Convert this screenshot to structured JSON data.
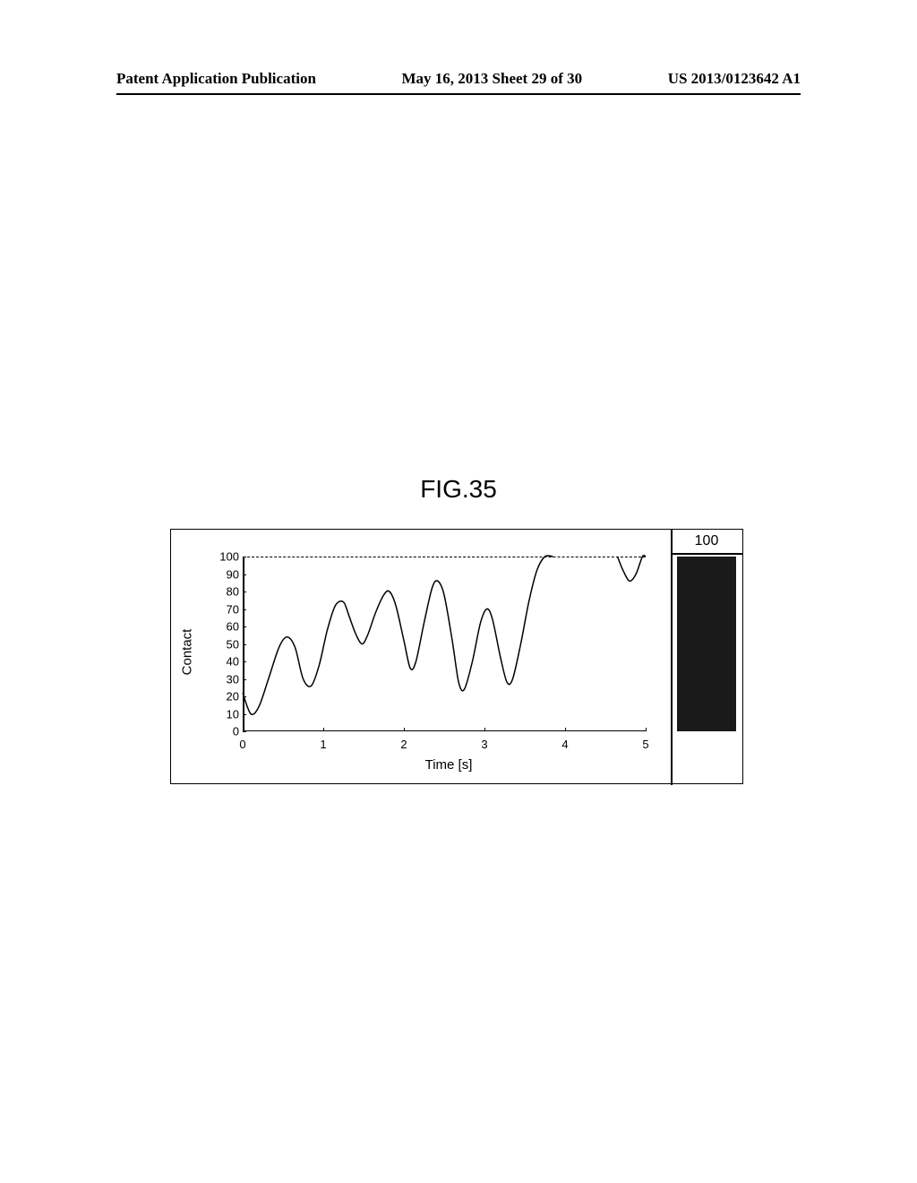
{
  "header": {
    "left": "Patent Application Publication",
    "center": "May 16, 2013  Sheet 29 of 30",
    "right": "US 2013/0123642 A1"
  },
  "figure": {
    "label": "FIG.35"
  },
  "chart": {
    "type": "line",
    "xlabel": "Time [s]",
    "ylabel": "Contact",
    "xlim": [
      0,
      5
    ],
    "ylim": [
      0,
      100
    ],
    "xtick_step": 1,
    "ytick_step": 10,
    "xticks": [
      0,
      1,
      2,
      3,
      4,
      5
    ],
    "yticks": [
      0,
      10,
      20,
      30,
      40,
      50,
      60,
      70,
      80,
      90,
      100
    ],
    "line_color": "#000000",
    "line_width": 1.5,
    "background_color": "#ffffff",
    "axis_color": "#000000",
    "top_line_dashed": true,
    "label_fontsize": 15,
    "tick_fontsize": 13,
    "data_points": [
      [
        0.0,
        22
      ],
      [
        0.1,
        10
      ],
      [
        0.2,
        14
      ],
      [
        0.32,
        30
      ],
      [
        0.45,
        48
      ],
      [
        0.55,
        54
      ],
      [
        0.65,
        48
      ],
      [
        0.75,
        30
      ],
      [
        0.85,
        26
      ],
      [
        0.95,
        38
      ],
      [
        1.05,
        58
      ],
      [
        1.15,
        72
      ],
      [
        1.25,
        74
      ],
      [
        1.32,
        66
      ],
      [
        1.4,
        56
      ],
      [
        1.48,
        50
      ],
      [
        1.55,
        55
      ],
      [
        1.65,
        68
      ],
      [
        1.75,
        78
      ],
      [
        1.82,
        80
      ],
      [
        1.9,
        72
      ],
      [
        2.0,
        52
      ],
      [
        2.08,
        36
      ],
      [
        2.15,
        40
      ],
      [
        2.25,
        62
      ],
      [
        2.35,
        82
      ],
      [
        2.42,
        86
      ],
      [
        2.5,
        78
      ],
      [
        2.6,
        52
      ],
      [
        2.68,
        28
      ],
      [
        2.75,
        24
      ],
      [
        2.85,
        40
      ],
      [
        2.95,
        62
      ],
      [
        3.03,
        70
      ],
      [
        3.1,
        64
      ],
      [
        3.2,
        42
      ],
      [
        3.28,
        28
      ],
      [
        3.35,
        30
      ],
      [
        3.45,
        50
      ],
      [
        3.55,
        74
      ],
      [
        3.65,
        92
      ],
      [
        3.75,
        100
      ],
      [
        3.85,
        100
      ],
      [
        4.65,
        100
      ],
      [
        4.72,
        92
      ],
      [
        4.8,
        86
      ],
      [
        4.88,
        90
      ],
      [
        4.96,
        100
      ],
      [
        5.0,
        100
      ]
    ],
    "curve_break_at": 3.85
  },
  "indicator": {
    "value": 100,
    "max": 100,
    "fill_color": "#1a1a1a",
    "text_color": "#000000",
    "fontsize": 16
  }
}
